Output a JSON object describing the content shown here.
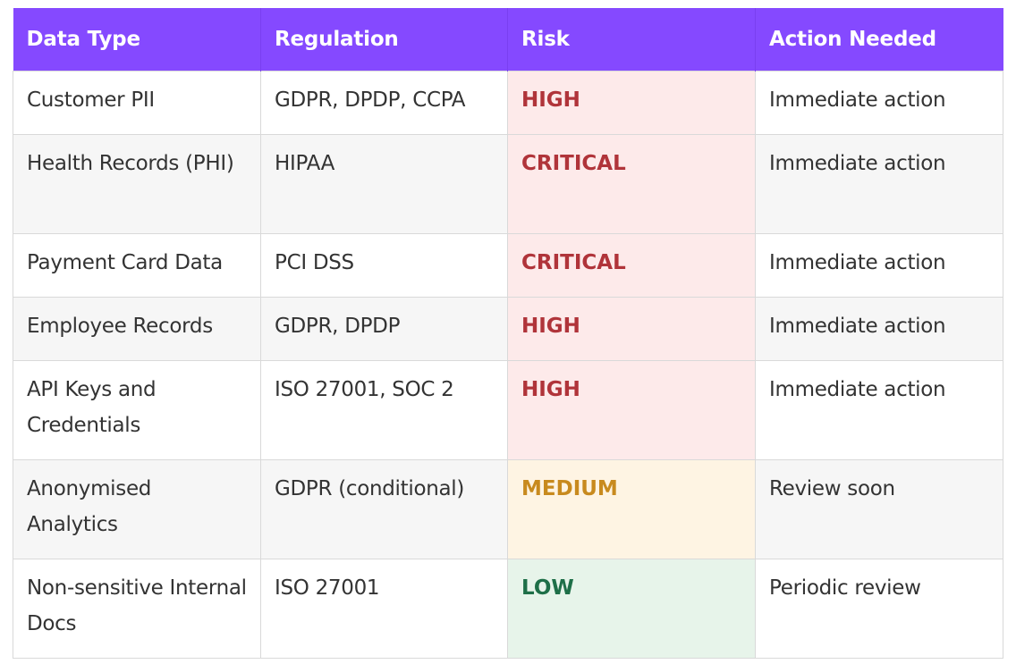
{
  "table": {
    "headers": [
      "Data Type",
      "Regulation",
      "Risk",
      "Action Needed"
    ],
    "rows": [
      {
        "data_type": "Customer PII",
        "regulation": "GDPR, DPDP, CCPA",
        "risk": "HIGH",
        "action": "Immediate action"
      },
      {
        "data_type": "Health Records (PHI)",
        "regulation": "HIPAA",
        "risk": "CRITICAL",
        "action": "Immediate action"
      },
      {
        "data_type": "Payment Card Data",
        "regulation": "PCI DSS",
        "risk": "CRITICAL",
        "action": "Immediate action"
      },
      {
        "data_type": "Employee Records",
        "regulation": "GDPR, DPDP",
        "risk": "HIGH",
        "action": "Immediate action"
      },
      {
        "data_type": "API Keys and Credentials",
        "regulation": "ISO 27001, SOC 2",
        "risk": "HIGH",
        "action": "Immediate action"
      },
      {
        "data_type": "Anonymised Analytics",
        "regulation": "GDPR (conditional)",
        "risk": "MEDIUM",
        "action": "Review soon"
      },
      {
        "data_type": "Non-sensitive Internal Docs",
        "regulation": "ISO 27001",
        "risk": "LOW",
        "action": "Periodic review"
      }
    ]
  },
  "colors": {
    "header_bg": "#8549ff",
    "risk_high_text": "#b0343a",
    "risk_high_bg": "#fdeaea",
    "risk_medium_text": "#c88a1e",
    "risk_medium_bg": "#fef4e3",
    "risk_low_text": "#1e6f48",
    "risk_low_bg": "#e7f4ea"
  }
}
